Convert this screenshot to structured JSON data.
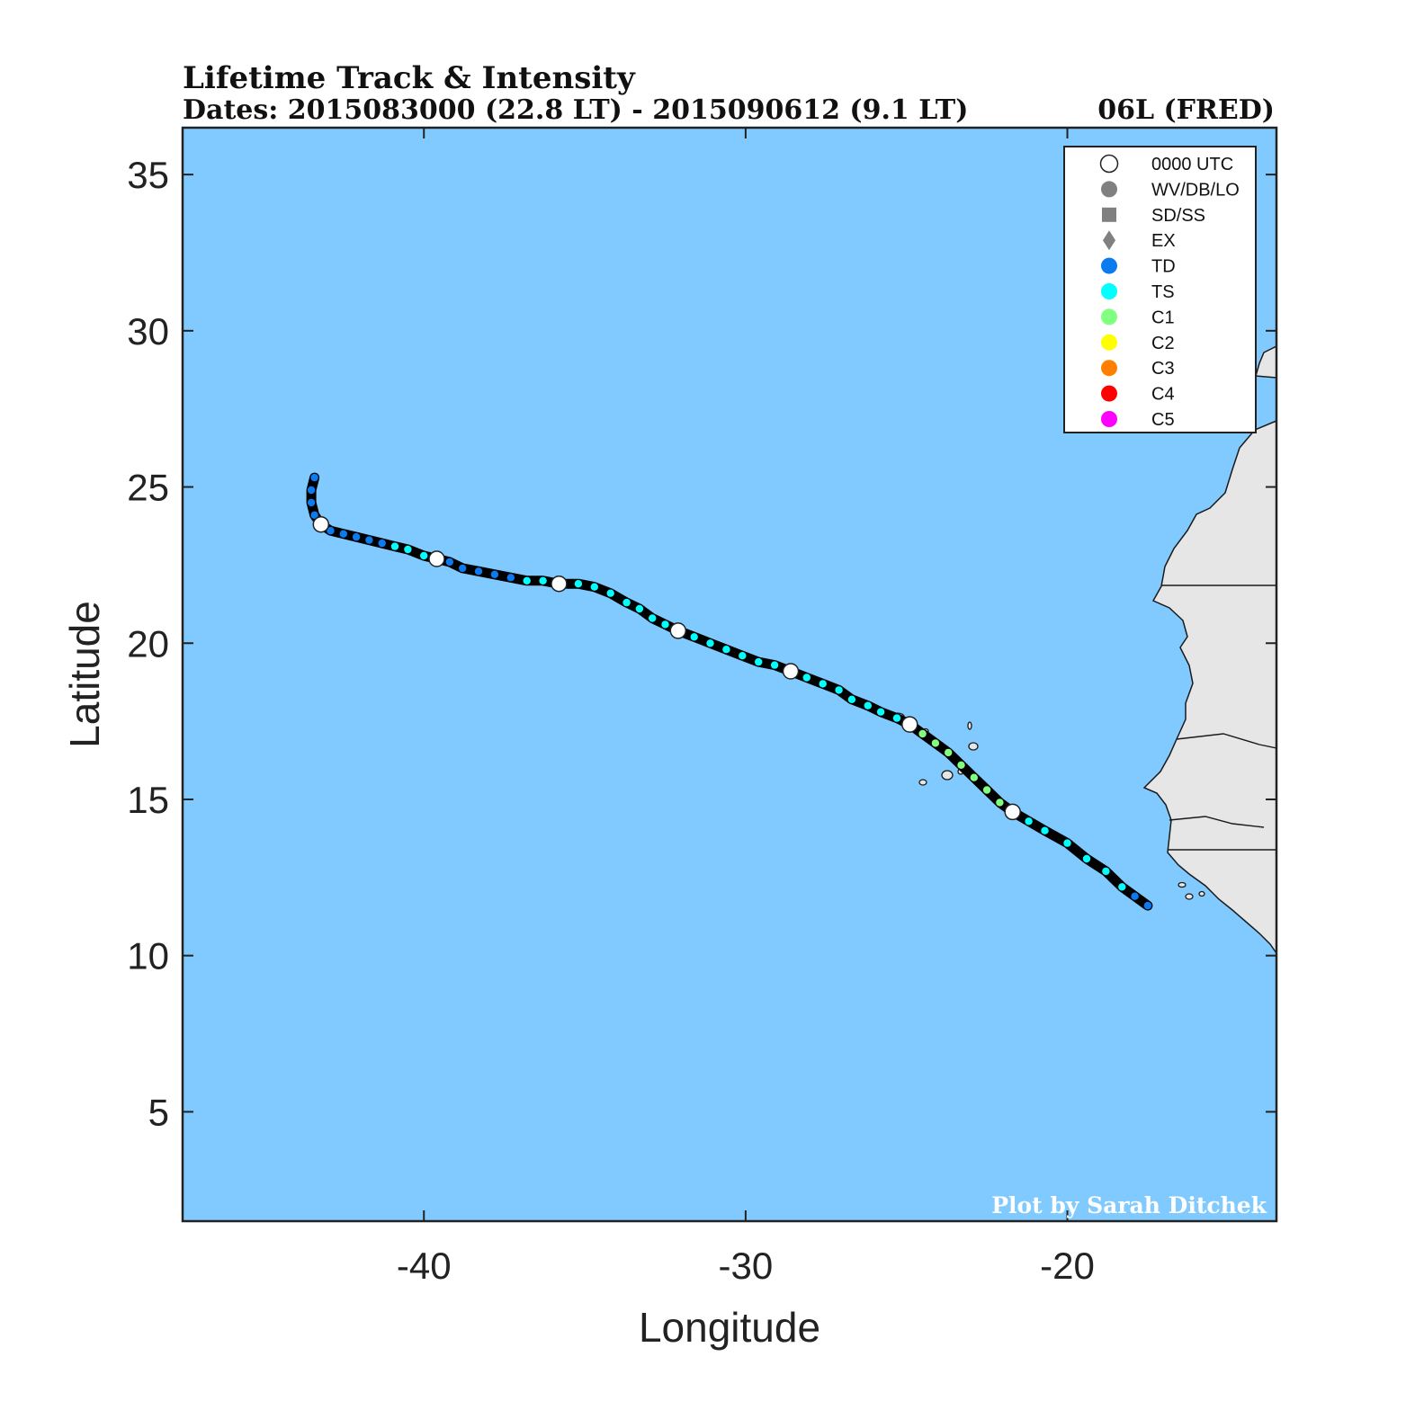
{
  "chart_data": {
    "type": "scatter",
    "title": "Lifetime Track & Intensity",
    "subtitle": "Dates: 2015083000 (22.8 LT) - 2015090612 (9.1 LT)",
    "storm_label": "06L (FRED)",
    "xlabel": "Longitude",
    "ylabel": "Latitude",
    "xlim": [
      -47.5,
      -13.5
    ],
    "ylim": [
      1.5,
      36.5
    ],
    "xticks": [
      -40,
      -30,
      -20
    ],
    "xtick_labels": [
      "-40",
      "-30",
      "-20"
    ],
    "yticks": [
      5,
      10,
      15,
      20,
      25,
      30,
      35
    ],
    "ytick_labels": [
      "5",
      "10",
      "15",
      "20",
      "25",
      "30",
      "35"
    ],
    "credit": "Plot by Sarah Ditchek",
    "colors": {
      "ocean": "#80caff",
      "land": "#e6e6e6",
      "track": "#000000",
      "TD": "#0b7bef",
      "TS": "#00ffff",
      "C1": "#80ff80",
      "C2": "#ffff00",
      "C3": "#ff8000",
      "C4": "#ff0000",
      "C5": "#ff00ff",
      "UTC": "#ffffff",
      "symbol": "#808080"
    },
    "legend": [
      {
        "label": "0000 UTC",
        "marker": "circle",
        "color": "#ffffff"
      },
      {
        "label": "WV/DB/LO",
        "marker": "circle",
        "color": "#808080"
      },
      {
        "label": "SD/SS",
        "marker": "square",
        "color": "#808080"
      },
      {
        "label": "EX",
        "marker": "diamond",
        "color": "#808080"
      },
      {
        "label": "TD",
        "marker": "circle",
        "color": "#0b7bef"
      },
      {
        "label": "TS",
        "marker": "circle",
        "color": "#00ffff"
      },
      {
        "label": "C1",
        "marker": "circle",
        "color": "#80ff80"
      },
      {
        "label": "C2",
        "marker": "circle",
        "color": "#ffff00"
      },
      {
        "label": "C3",
        "marker": "circle",
        "color": "#ff8000"
      },
      {
        "label": "C4",
        "marker": "circle",
        "color": "#ff0000"
      },
      {
        "label": "C5",
        "marker": "circle",
        "color": "#ff00ff"
      }
    ],
    "track": [
      [
        -17.5,
        11.6,
        "TD"
      ],
      [
        -17.9,
        11.9,
        "TD"
      ],
      [
        -18.3,
        12.2,
        "TS"
      ],
      [
        -18.8,
        12.7,
        "TS"
      ],
      [
        -19.4,
        13.1,
        "TS"
      ],
      [
        -20.0,
        13.6,
        "TS"
      ],
      [
        -20.7,
        14.0,
        "TS"
      ],
      [
        -21.2,
        14.3,
        "TS"
      ],
      [
        -21.7,
        14.6,
        "UTC"
      ],
      [
        -22.1,
        14.9,
        "C1"
      ],
      [
        -22.5,
        15.3,
        "C1"
      ],
      [
        -22.9,
        15.7,
        "C1"
      ],
      [
        -23.3,
        16.1,
        "C1"
      ],
      [
        -23.7,
        16.5,
        "C1"
      ],
      [
        -24.1,
        16.8,
        "C1"
      ],
      [
        -24.5,
        17.1,
        "C1"
      ],
      [
        -24.9,
        17.4,
        "UTC"
      ],
      [
        -25.3,
        17.6,
        "TS"
      ],
      [
        -25.8,
        17.8,
        "TS"
      ],
      [
        -26.2,
        18.0,
        "TS"
      ],
      [
        -26.7,
        18.2,
        "TS"
      ],
      [
        -27.1,
        18.5,
        "TS"
      ],
      [
        -27.6,
        18.7,
        "TS"
      ],
      [
        -28.1,
        18.9,
        "TS"
      ],
      [
        -28.6,
        19.1,
        "UTC"
      ],
      [
        -29.1,
        19.3,
        "TS"
      ],
      [
        -29.6,
        19.4,
        "TS"
      ],
      [
        -30.1,
        19.6,
        "TS"
      ],
      [
        -30.6,
        19.8,
        "TS"
      ],
      [
        -31.1,
        20.0,
        "TS"
      ],
      [
        -31.6,
        20.2,
        "TS"
      ],
      [
        -32.1,
        20.4,
        "UTC"
      ],
      [
        -32.5,
        20.6,
        "TS"
      ],
      [
        -32.9,
        20.8,
        "TS"
      ],
      [
        -33.3,
        21.1,
        "TS"
      ],
      [
        -33.7,
        21.3,
        "TS"
      ],
      [
        -34.2,
        21.6,
        "TS"
      ],
      [
        -34.7,
        21.8,
        "TS"
      ],
      [
        -35.2,
        21.9,
        "TS"
      ],
      [
        -35.8,
        21.9,
        "UTC"
      ],
      [
        -36.3,
        22.0,
        "TS"
      ],
      [
        -36.8,
        22.0,
        "TS"
      ],
      [
        -37.3,
        22.1,
        "TD"
      ],
      [
        -37.8,
        22.2,
        "TD"
      ],
      [
        -38.3,
        22.3,
        "TD"
      ],
      [
        -38.8,
        22.4,
        "TD"
      ],
      [
        -39.2,
        22.6,
        "TD"
      ],
      [
        -39.6,
        22.7,
        "UTC"
      ],
      [
        -40.0,
        22.8,
        "TS"
      ],
      [
        -40.5,
        23.0,
        "TS"
      ],
      [
        -40.9,
        23.1,
        "TS"
      ],
      [
        -41.3,
        23.2,
        "TD"
      ],
      [
        -41.7,
        23.3,
        "TD"
      ],
      [
        -42.1,
        23.4,
        "TD"
      ],
      [
        -42.5,
        23.5,
        "TD"
      ],
      [
        -42.9,
        23.6,
        "TD"
      ],
      [
        -43.2,
        23.8,
        "UTC"
      ],
      [
        -43.4,
        24.1,
        "TD"
      ],
      [
        -43.5,
        24.5,
        "TD"
      ],
      [
        -43.5,
        24.9,
        "TD"
      ],
      [
        -43.4,
        25.3,
        "TD"
      ]
    ]
  }
}
